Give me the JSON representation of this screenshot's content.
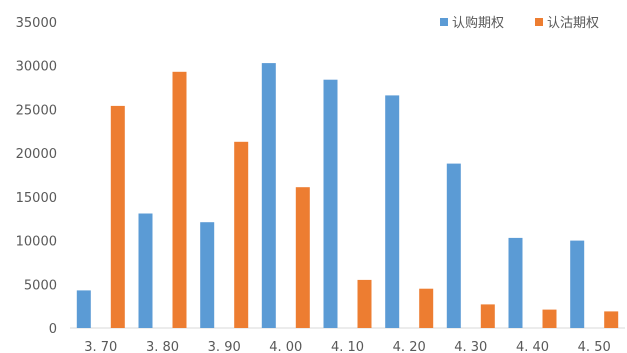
{
  "chart_data": {
    "type": "bar",
    "title": "",
    "xlabel": "",
    "ylabel": "",
    "categories": [
      "3.70",
      "3.80",
      "3.90",
      "4.00",
      "4.10",
      "4.20",
      "4.30",
      "4.40",
      "4.50"
    ],
    "category_labels": [
      "3. 70",
      "3. 80",
      "3. 90",
      "4. 00",
      "4. 10",
      "4. 20",
      "4. 30",
      "4. 40",
      "4. 50"
    ],
    "series": [
      {
        "name": "认购期权",
        "color": "#5b9bd5",
        "values": [
          4300,
          13100,
          12100,
          30300,
          28400,
          26600,
          18800,
          10300,
          10000
        ]
      },
      {
        "name": "认沽期权",
        "color": "#ed7d31",
        "values": [
          25400,
          29300,
          21300,
          16100,
          5500,
          4500,
          2700,
          2100,
          1900
        ]
      }
    ],
    "ylim": [
      0,
      35000
    ],
    "yticks": [
      "0",
      "5000",
      "10000",
      "15000",
      "20000",
      "25000",
      "30000",
      "35000"
    ],
    "grid": false,
    "legend_position": "top-right"
  }
}
